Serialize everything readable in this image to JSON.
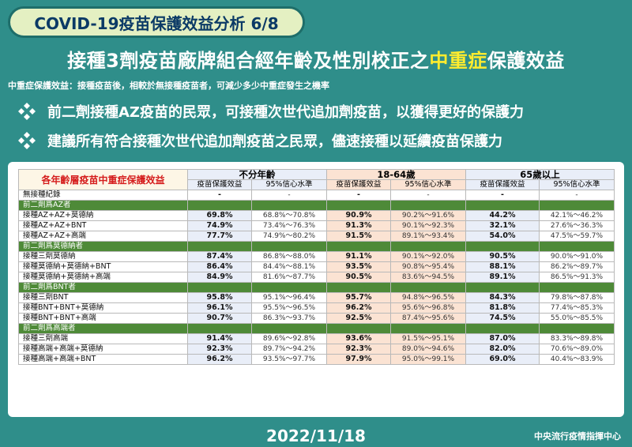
{
  "header": {
    "pill_title": "COVID-19疫苗保護效益分析 6/8",
    "headline_pre": "接種3劑疫苗廠牌組合經年齡及性別校正之",
    "headline_highlight": "中重症",
    "headline_post": "保護效益",
    "subtitle": "中重症保護效益：接種疫苗後，相較於無接種疫苗者，可減少多少中重症發生之機率"
  },
  "bullets": [
    "前二劑接種AZ疫苗的民眾，可接種次世代追加劑疫苗，以獲得更好的保護力",
    "建議所有符合接種次世代追加劑疫苗之民眾，儘速接種以延續疫苗保護力"
  ],
  "table": {
    "corner": "各年齡層疫苗中重症保護效益",
    "groups": [
      "不分年齡",
      "18-64歲",
      "65歲以上"
    ],
    "sub_eff": "疫苗保護效益",
    "sub_ci": "95%信心水準",
    "baseline": {
      "label": "無接種紀錄",
      "cells": [
        "-",
        "-",
        "-",
        "-",
        "-",
        "-"
      ]
    },
    "sections": [
      {
        "title": "前二劑爲AZ者",
        "rows": [
          {
            "label": "接種AZ+AZ+莫德納",
            "cells": [
              "69.8%",
              "68.8%～70.8%",
              "90.9%",
              "90.2%～91.6%",
              "44.2%",
              "42.1%～46.2%"
            ]
          },
          {
            "label": "接種AZ+AZ+BNT",
            "cells": [
              "74.9%",
              "73.4%～76.3%",
              "91.3%",
              "90.1%～92.3%",
              "32.1%",
              "27.6%～36.3%"
            ]
          },
          {
            "label": "接種AZ+AZ+高端",
            "cells": [
              "77.7%",
              "74.9%～80.2%",
              "91.5%",
              "89.1%～93.4%",
              "54.0%",
              "47.5%～59.7%"
            ]
          }
        ]
      },
      {
        "title": "前二劑爲莫德納者",
        "rows": [
          {
            "label": "接種三劑莫德納",
            "cells": [
              "87.4%",
              "86.8%～88.0%",
              "91.1%",
              "90.1%～92.0%",
              "90.5%",
              "90.0%～91.0%"
            ]
          },
          {
            "label": "接種莫德納+莫德納+BNT",
            "cells": [
              "86.4%",
              "84.4%～88.1%",
              "93.5%",
              "90.8%～95.4%",
              "88.1%",
              "86.2%～89.7%"
            ]
          },
          {
            "label": "接種莫德納+莫德納+高端",
            "cells": [
              "84.9%",
              "81.6%～87.7%",
              "90.5%",
              "83.6%～94.5%",
              "89.1%",
              "86.5%～91.3%"
            ]
          }
        ]
      },
      {
        "title": "前二劑爲BNT者",
        "rows": [
          {
            "label": "接種三劑BNT",
            "cells": [
              "95.8%",
              "95.1%～96.4%",
              "95.7%",
              "94.8%～96.5%",
              "84.3%",
              "79.8%～87.8%"
            ]
          },
          {
            "label": "接種BNT+BNT+莫德納",
            "cells": [
              "96.1%",
              "95.5%～96.5%",
              "96.2%",
              "95.6%～96.8%",
              "81.8%",
              "77.4%～85.3%"
            ]
          },
          {
            "label": "接種BNT+BNT+高端",
            "cells": [
              "90.7%",
              "86.3%～93.7%",
              "92.5%",
              "87.4%～95.6%",
              "74.5%",
              "55.0%～85.5%"
            ]
          }
        ]
      },
      {
        "title": "前二劑爲高端者",
        "rows": [
          {
            "label": "接種三劑高端",
            "cells": [
              "91.4%",
              "89.6%～92.8%",
              "93.6%",
              "91.5%～95.1%",
              "87.0%",
              "83.3%～89.8%"
            ]
          },
          {
            "label": "接種高端+高端+莫德納",
            "cells": [
              "92.3%",
              "89.7%～94.2%",
              "92.3%",
              "89.0%～94.6%",
              "82.0%",
              "70.6%～89.0%"
            ]
          },
          {
            "label": "接種高端+高端+BNT",
            "cells": [
              "96.2%",
              "93.5%～97.7%",
              "97.9%",
              "95.0%～99.1%",
              "69.0%",
              "40.4%～83.9%"
            ]
          }
        ]
      }
    ]
  },
  "footer": {
    "date": "2022/11/18",
    "org": "中央流行疫情指揮中心"
  },
  "colors": {
    "background": "#2f8e8a",
    "headline_highlight": "#ffec2e",
    "corner_text": "#d51c1c",
    "section_band": "#4e8a38",
    "mid_group_tint": "#fbe3d3",
    "side_group_tint": "#e9eef8"
  },
  "icons": {
    "bullet": "four-diamond-bullet-icon"
  }
}
